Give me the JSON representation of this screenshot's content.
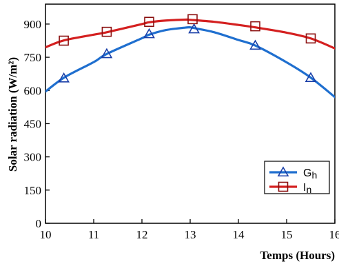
{
  "chart_data": {
    "type": "line",
    "title": "",
    "xlabel": "Temps (Hours)",
    "ylabel": "Solar radiation (W/m²)",
    "xlim": [
      10,
      16
    ],
    "ylim": [
      0,
      990
    ],
    "x_ticks": [
      10,
      11,
      12,
      13,
      14,
      15,
      16
    ],
    "y_ticks": [
      0,
      150,
      300,
      450,
      600,
      750,
      900
    ],
    "legend_position": "bottom-right",
    "grid": false,
    "series": [
      {
        "name": "Gh",
        "name_main": "G",
        "name_sub": "h",
        "color": "#1f6fcf",
        "marker": "triangle",
        "curve_x": [
          10,
          10.4,
          11,
          11.27,
          12,
          12.15,
          12.5,
          12.9,
          13,
          13.08,
          13.5,
          14,
          14.35,
          15,
          15.5,
          16
        ],
        "curve_y": [
          595,
          660,
          728,
          765,
          836,
          852,
          873,
          884,
          885,
          882,
          863,
          828,
          803,
          727,
          658,
          570
        ],
        "markers_x": [
          10.38,
          11.27,
          12.15,
          13.08,
          14.35,
          15.5
        ],
        "markers_y": [
          655,
          765,
          855,
          877,
          803,
          657
        ]
      },
      {
        "name": "In",
        "name_main": "I",
        "name_sub": "n",
        "color": "#d42020",
        "marker": "square",
        "curve_x": [
          10,
          10.38,
          11,
          11.27,
          12,
          12.15,
          12.5,
          12.9,
          13,
          13.5,
          14,
          14.35,
          15,
          15.5,
          16
        ],
        "curve_y": [
          795,
          826,
          852,
          863,
          900,
          908,
          916,
          920,
          919,
          910,
          896,
          885,
          861,
          835,
          790
        ],
        "markers_x": [
          10.38,
          11.27,
          12.15,
          13.05,
          14.35,
          15.5
        ],
        "markers_y": [
          825,
          865,
          910,
          922,
          890,
          835
        ]
      }
    ]
  }
}
